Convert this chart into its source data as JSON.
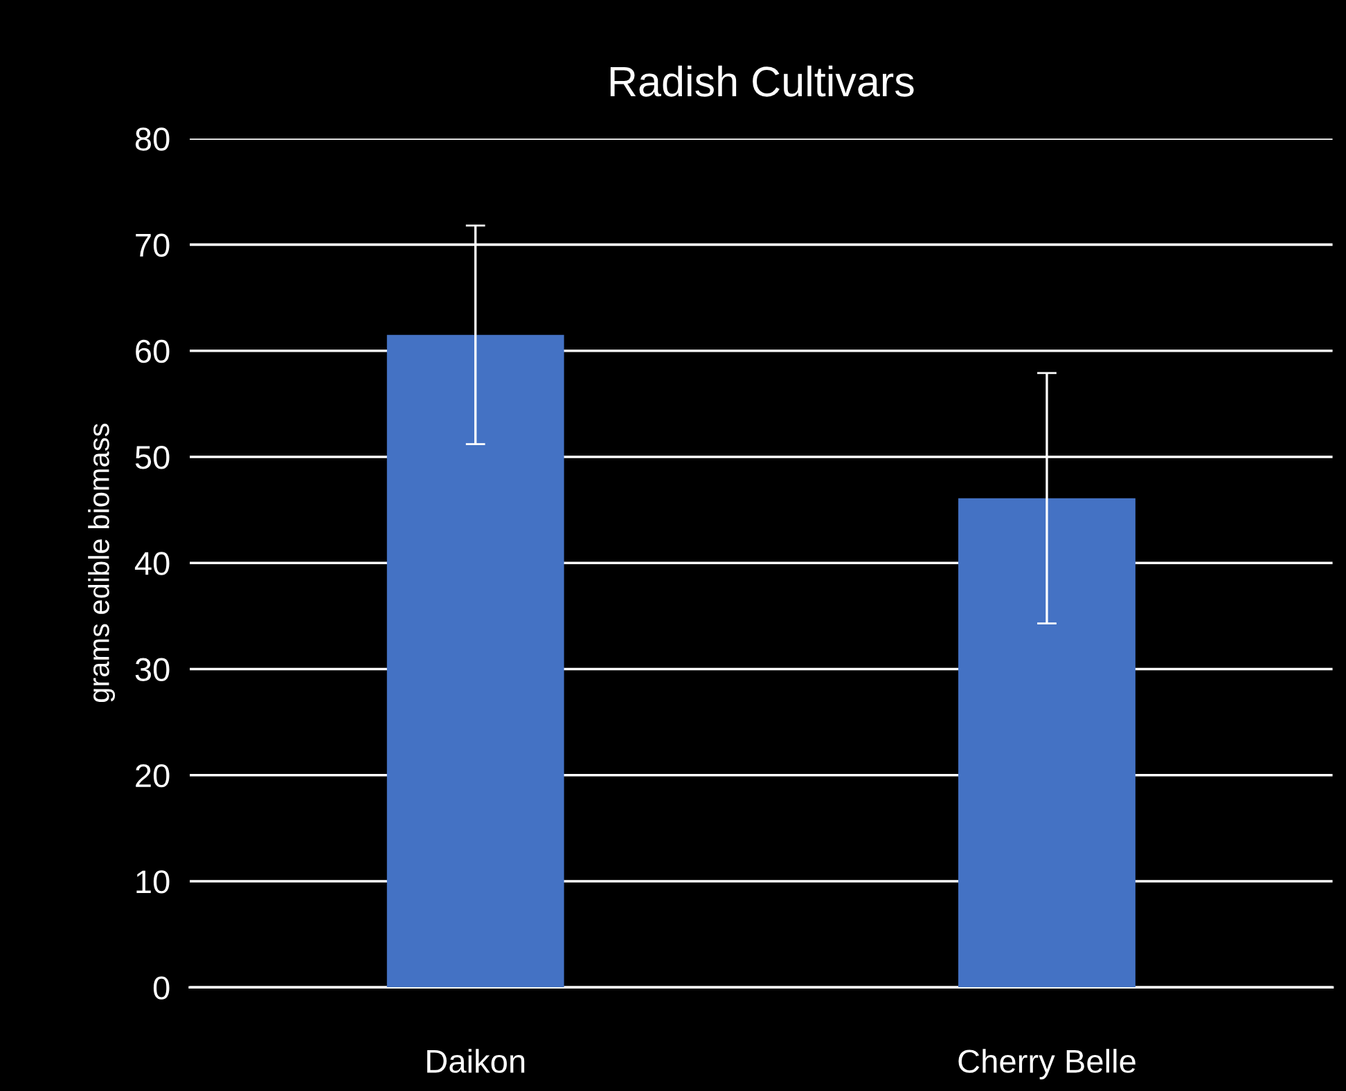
{
  "chart_data": {
    "type": "bar",
    "title": "Radish Cultivars",
    "ylabel": "grams edible biomass",
    "categories": [
      "Daikon",
      "Cherry Belle"
    ],
    "values": [
      61.5,
      46.1
    ],
    "errors": [
      10.3,
      11.8
    ],
    "color": "#4472c4",
    "ylim": [
      0,
      80
    ],
    "yticks": [
      0,
      10,
      20,
      30,
      40,
      50,
      60,
      70,
      80
    ],
    "grid": "y"
  }
}
